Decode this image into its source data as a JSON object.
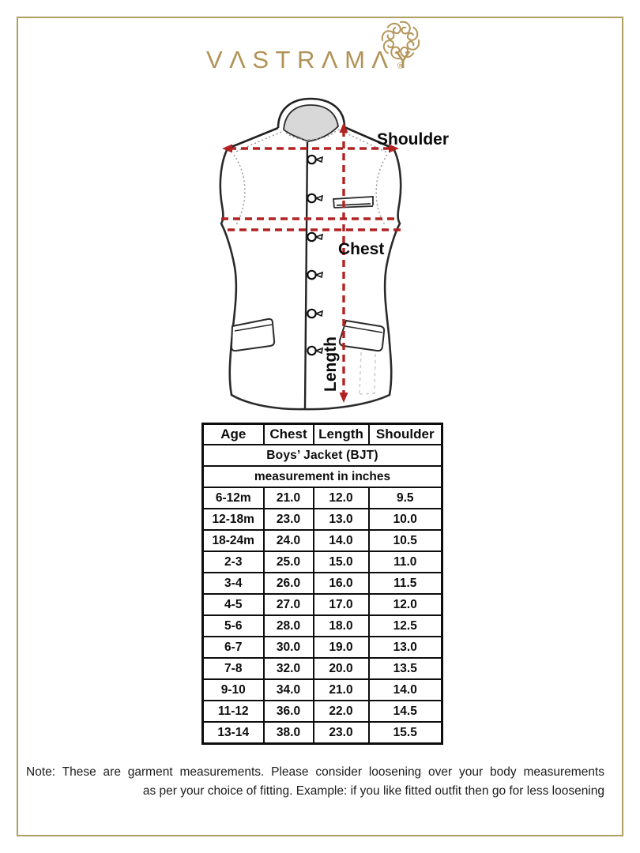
{
  "brand": {
    "name": "VASTRAMAY",
    "logo_display": "VΛSTRΛMΛY",
    "registered_mark": "®"
  },
  "colors": {
    "logo_gold": "#b19356",
    "frame_gold": "#ae9f62",
    "measure_line_red": "#b22222",
    "table_ink": "#0d0d0d",
    "collar_fill": "#d8d8d8"
  },
  "diagram": {
    "labels": {
      "shoulder": "Shoulder",
      "chest": "Chest",
      "length": "Length"
    }
  },
  "size_chart": {
    "title": "Boys’ Jacket (BJT)",
    "unit_note": "measurement in inches",
    "columns": [
      "Age",
      "Chest",
      "Length",
      "Shoulder"
    ],
    "rows": [
      [
        "6-12m",
        "21.0",
        "12.0",
        "9.5"
      ],
      [
        "12-18m",
        "23.0",
        "13.0",
        "10.0"
      ],
      [
        "18-24m",
        "24.0",
        "14.0",
        "10.5"
      ],
      [
        "2-3",
        "25.0",
        "15.0",
        "11.0"
      ],
      [
        "3-4",
        "26.0",
        "16.0",
        "11.5"
      ],
      [
        "4-5",
        "27.0",
        "17.0",
        "12.0"
      ],
      [
        "5-6",
        "28.0",
        "18.0",
        "12.5"
      ],
      [
        "6-7",
        "30.0",
        "19.0",
        "13.0"
      ],
      [
        "7-8",
        "32.0",
        "20.0",
        "13.5"
      ],
      [
        "9-10",
        "34.0",
        "21.0",
        "14.0"
      ],
      [
        "11-12",
        "36.0",
        "22.0",
        "14.5"
      ],
      [
        "13-14",
        "38.0",
        "23.0",
        "15.5"
      ]
    ]
  },
  "chart_data": {
    "type": "table",
    "title": "Boys’ Jacket (BJT)",
    "unit": "inches",
    "columns": [
      "Age",
      "Chest",
      "Length",
      "Shoulder"
    ],
    "rows": [
      [
        "6-12m",
        "21.0",
        "12.0",
        "9.5"
      ],
      [
        "12-18m",
        "23.0",
        "13.0",
        "10.0"
      ],
      [
        "18-24m",
        "24.0",
        "14.0",
        "10.5"
      ],
      [
        "2-3",
        "25.0",
        "15.0",
        "11.0"
      ],
      [
        "3-4",
        "26.0",
        "16.0",
        "11.5"
      ],
      [
        "4-5",
        "27.0",
        "17.0",
        "12.0"
      ],
      [
        "5-6",
        "28.0",
        "18.0",
        "12.5"
      ],
      [
        "6-7",
        "30.0",
        "19.0",
        "13.0"
      ],
      [
        "7-8",
        "32.0",
        "20.0",
        "13.5"
      ],
      [
        "9-10",
        "34.0",
        "21.0",
        "14.0"
      ],
      [
        "11-12",
        "36.0",
        "22.0",
        "14.5"
      ],
      [
        "13-14",
        "38.0",
        "23.0",
        "15.5"
      ]
    ]
  },
  "footnote": {
    "line1": "Note: These are garment measurements. Please consider loosening over your body measurements",
    "line2": "as per your choice of fitting. Example: if you like fitted outfit then go for less loosening"
  }
}
